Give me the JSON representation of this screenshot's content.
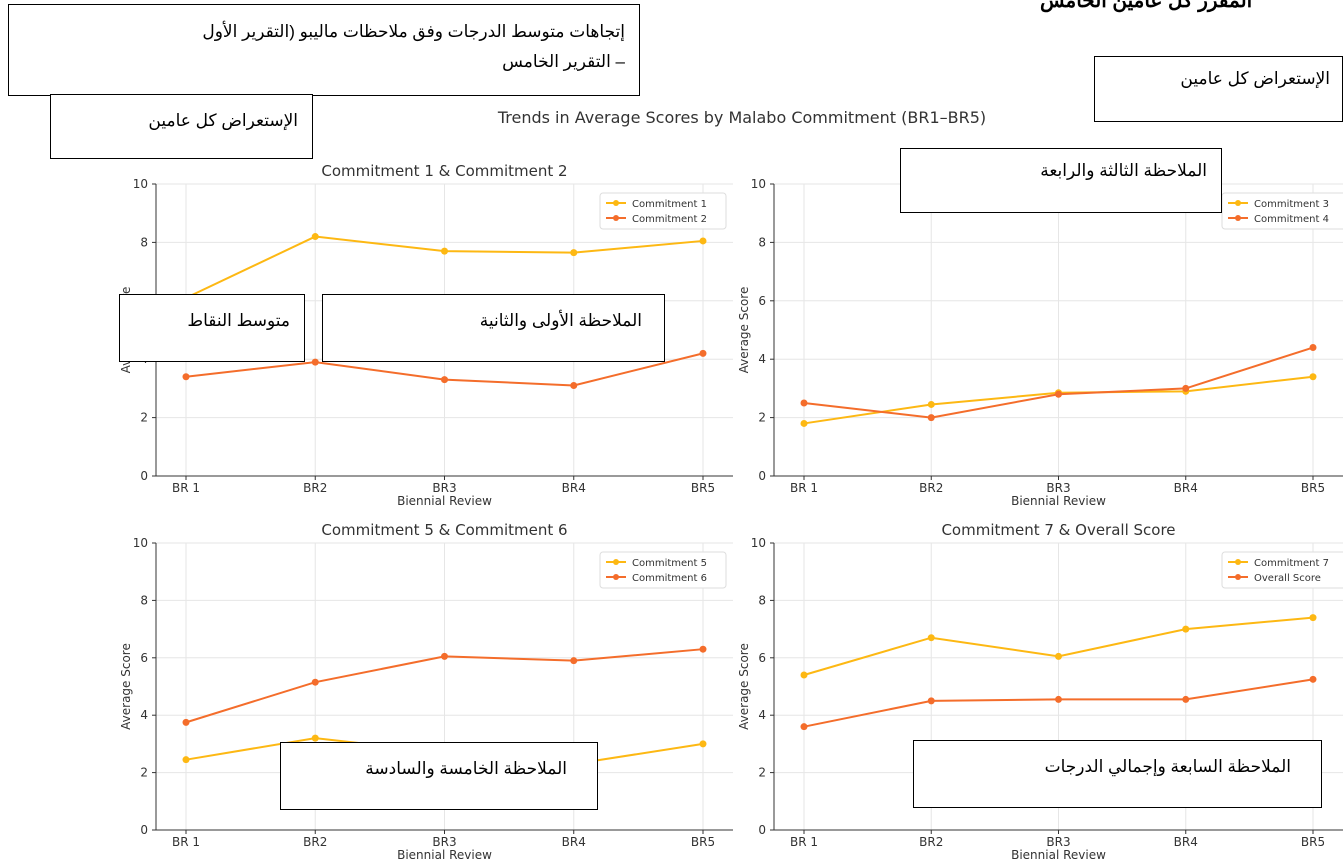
{
  "header_clipped": "المقرر كل عامين الخامس",
  "figure_title": "Trends in Average Scores by Malabo Commitment (BR1–BR5)",
  "annotations": {
    "main_title_line1": "إتجاهات متوسط الدرجات وفق ملاحظات ماليبو (التقرير الأول",
    "main_title_line2": "– التقرير الخامس",
    "biennial_left": "الإستعراض كل عامين",
    "biennial_right": "الإستعراض كل عامين",
    "avg_points": "متوسط النقاط",
    "note_1_2": "الملاحظة الأولى والثانية",
    "note_3_4": "الملاحظة الثالثة والرابعة",
    "note_5_6": "الملاحظة الخامسة والسادسة",
    "note_7_overall": "الملاحظة السابعة وإجمالي الدرجات"
  },
  "colors": {
    "series_a": "#fdb813",
    "series_b": "#f46d2b",
    "grid": "#e6e6e6",
    "axis": "#333333"
  },
  "chart_data": [
    {
      "type": "line",
      "title": "Commitment 1 & Commitment 2",
      "categories": [
        "BR 1",
        "BR2",
        "BR3",
        "BR4",
        "BR5"
      ],
      "xlabel": "Biennial Review",
      "ylabel": "Average Score",
      "ylim": [
        0,
        10
      ],
      "yticks": [
        "0",
        "2",
        "4",
        "6",
        "8",
        "10"
      ],
      "legend": "top-right",
      "series": [
        {
          "name": "Commitment 1",
          "values": [
            6.1,
            8.2,
            7.7,
            7.65,
            8.05
          ]
        },
        {
          "name": "Commitment 2",
          "values": [
            3.4,
            3.9,
            3.3,
            3.1,
            4.2
          ]
        }
      ]
    },
    {
      "type": "line",
      "title": "",
      "categories": [
        "BR 1",
        "BR2",
        "BR3",
        "BR4",
        "BR5"
      ],
      "xlabel": "Biennial Review",
      "ylabel": "Average Score",
      "ylim": [
        0,
        10
      ],
      "yticks": [
        "0",
        "2",
        "4",
        "6",
        "8",
        "10"
      ],
      "legend": "top-right",
      "series": [
        {
          "name": "Commitment 3",
          "values": [
            1.8,
            2.45,
            2.85,
            2.9,
            3.4
          ]
        },
        {
          "name": "Commitment 4",
          "values": [
            2.5,
            2.0,
            2.8,
            3.0,
            4.4
          ]
        }
      ]
    },
    {
      "type": "line",
      "title": "Commitment 5 & Commitment 6",
      "categories": [
        "BR 1",
        "BR2",
        "BR3",
        "BR4",
        "BR5"
      ],
      "xlabel": "Biennial Review",
      "ylabel": "Average Score",
      "ylim": [
        0,
        10
      ],
      "yticks": [
        "0",
        "2",
        "4",
        "6",
        "8",
        "10"
      ],
      "legend": "top-right",
      "series": [
        {
          "name": "Commitment 5",
          "values": [
            2.45,
            3.2,
            2.7,
            2.3,
            3.0
          ]
        },
        {
          "name": "Commitment 6",
          "values": [
            3.75,
            5.15,
            6.05,
            5.9,
            6.3
          ]
        }
      ]
    },
    {
      "type": "line",
      "title": "Commitment 7 & Overall Score",
      "categories": [
        "BR 1",
        "BR2",
        "BR3",
        "BR4",
        "BR5"
      ],
      "xlabel": "Biennial Review",
      "ylabel": "Average Score",
      "ylim": [
        0,
        10
      ],
      "yticks": [
        "0",
        "2",
        "4",
        "6",
        "8",
        "10"
      ],
      "legend": "top-right",
      "series": [
        {
          "name": "Commitment 7",
          "values": [
            5.4,
            6.7,
            6.05,
            7.0,
            7.4
          ]
        },
        {
          "name": "Overall Score",
          "values": [
            3.6,
            4.5,
            4.55,
            4.55,
            5.25
          ]
        }
      ]
    }
  ]
}
